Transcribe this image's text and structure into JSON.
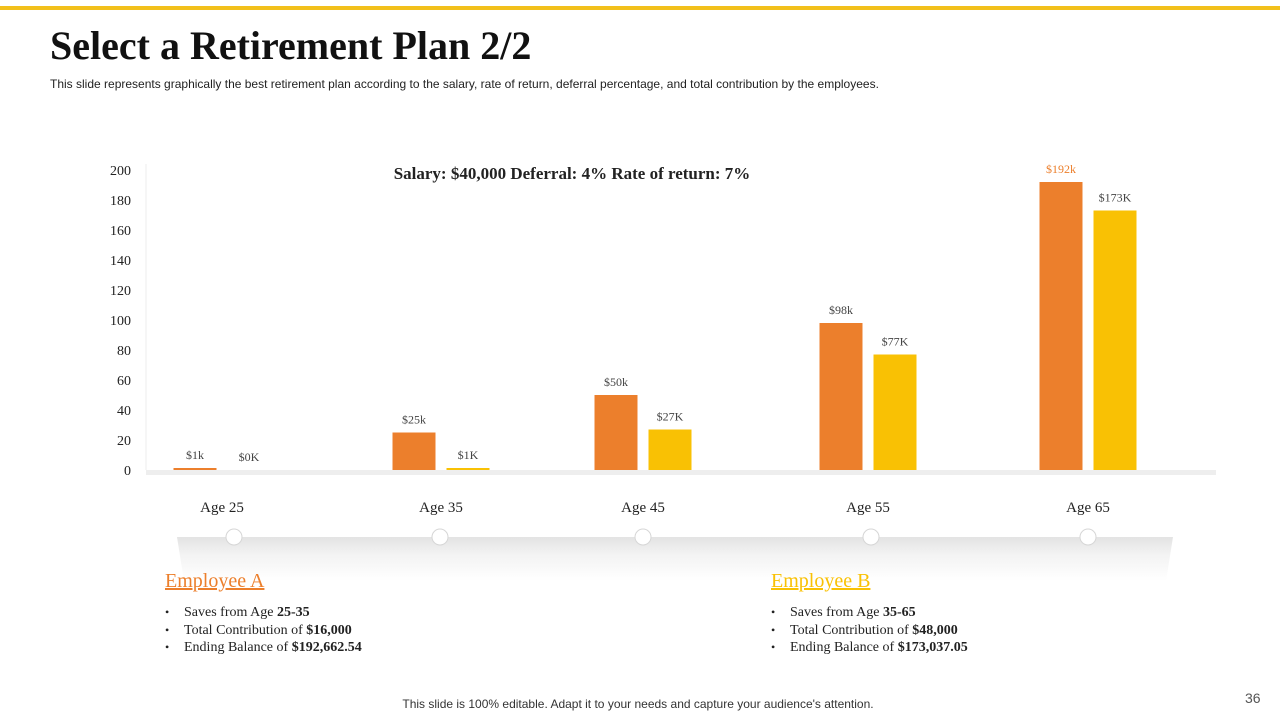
{
  "slide": {
    "title": "Select a Retirement Plan 2/2",
    "subtitle": "This slide represents graphically the best retirement plan according to the salary, rate of return, deferral  percentage, and total contribution  by the employees.",
    "footer": "This slide is 100% editable. Adapt it to your needs and capture your audience's attention.",
    "page_number": "36",
    "accent_color": "#f2c01b"
  },
  "chart_data": {
    "type": "bar",
    "title": "Salary: $40,000   Deferral: 4%    Rate of return: 7%",
    "categories": [
      "Age  25",
      "Age  35",
      "Age  45",
      "Age  55",
      "Age  65"
    ],
    "ylim": [
      0,
      200
    ],
    "yticks": [
      0,
      20,
      40,
      60,
      80,
      100,
      120,
      140,
      160,
      180,
      200
    ],
    "grid": false,
    "series": [
      {
        "color": "#ec7f2c",
        "values": [
          1,
          25,
          50,
          98,
          192
        ],
        "labels": [
          "$1k",
          "$25k",
          "$50k",
          "$98k",
          "$192k"
        ]
      },
      {
        "color": "#f9c104",
        "values": [
          0,
          1,
          27,
          77,
          173
        ],
        "labels": [
          "$0K",
          "$1K",
          "$27K",
          "$77K",
          "$173K"
        ]
      }
    ]
  },
  "employees": [
    {
      "name": "Employee A",
      "color": "#ec7f2c",
      "items": [
        {
          "text": "Saves from Age ",
          "bold": "25-35"
        },
        {
          "text": "Total Contribution  of ",
          "bold": "$16,000"
        },
        {
          "text": "Ending Balance of ",
          "bold": "$192,662.54"
        }
      ]
    },
    {
      "name": "Employee B",
      "color": "#f9c104",
      "items": [
        {
          "text": "Saves from Age ",
          "bold": "35-65"
        },
        {
          "text": "Total Contribution  of ",
          "bold": "$48,000"
        },
        {
          "text": "Ending  Balance of ",
          "bold": "$173,037.05"
        }
      ]
    }
  ]
}
